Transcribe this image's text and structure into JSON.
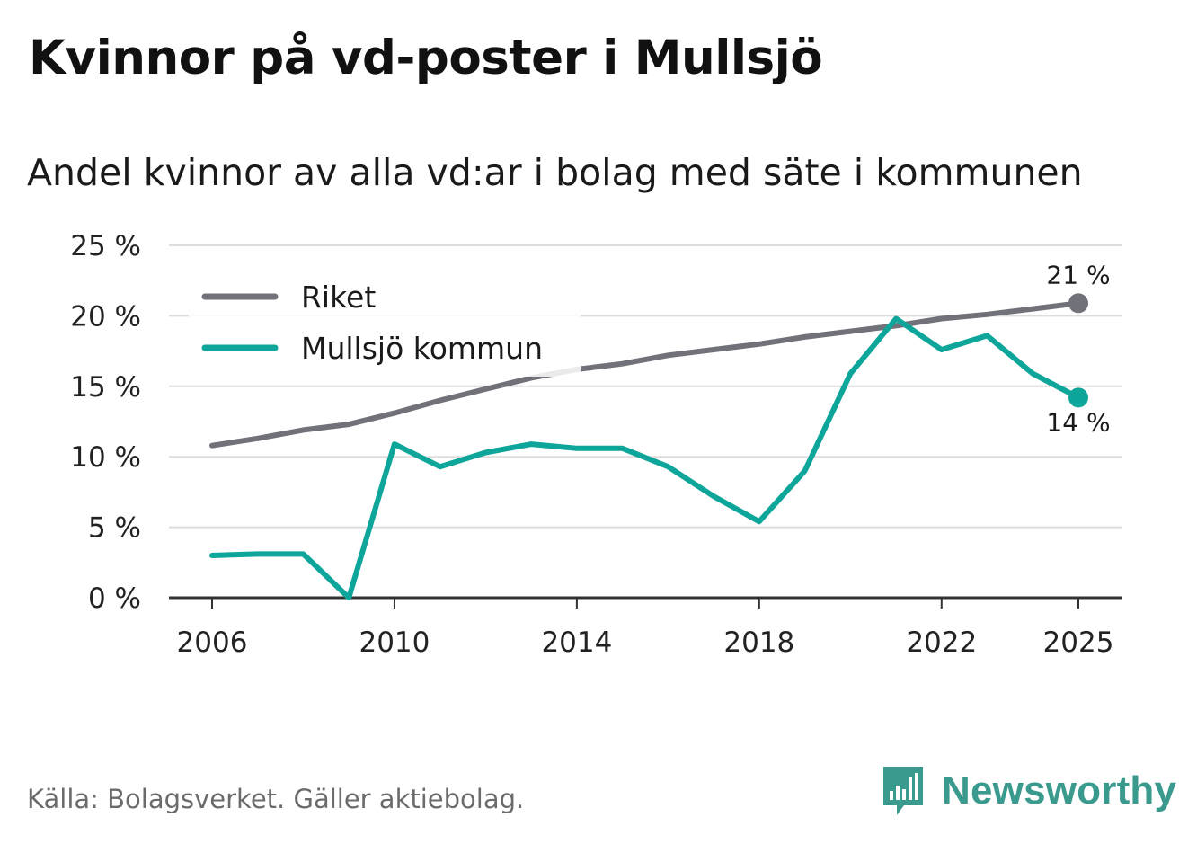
{
  "title": "Kvinnor på vd-poster i Mullsjö",
  "subtitle": "Andel kvinnor av alla vd:ar i bolag med säte i kommunen",
  "source": "Källa: Bolagsverket. Gäller aktiebolag.",
  "brand": "Newsworthy",
  "colors": {
    "riket": "#71717a",
    "mullsjo": "#0ea59a",
    "grid": "#dddddd",
    "axis": "#333333",
    "brand": "#3a9a8e"
  },
  "chart_data": {
    "type": "line",
    "title": "Kvinnor på vd-poster i Mullsjö",
    "xlabel": "",
    "ylabel": "",
    "ylim": [
      0,
      25
    ],
    "xlim": [
      2006,
      2025
    ],
    "x": [
      2006,
      2007,
      2008,
      2009,
      2010,
      2011,
      2012,
      2013,
      2014,
      2015,
      2016,
      2017,
      2018,
      2019,
      2020,
      2021,
      2022,
      2023,
      2024,
      2025
    ],
    "x_ticks": [
      2006,
      2010,
      2014,
      2018,
      2022,
      2025
    ],
    "y_ticks": [
      0,
      5,
      10,
      15,
      20,
      25
    ],
    "y_tick_labels": [
      "0 %",
      "5 %",
      "10 %",
      "15 %",
      "20 %",
      "25 %"
    ],
    "grid": true,
    "legend_position": "top-left",
    "series": [
      {
        "name": "Riket",
        "color": "#71717a",
        "values": [
          10.8,
          11.3,
          11.9,
          12.3,
          13.1,
          14.0,
          14.8,
          15.6,
          16.2,
          16.6,
          17.2,
          17.6,
          18.0,
          18.5,
          18.9,
          19.3,
          19.8,
          20.1,
          20.5,
          20.9
        ],
        "end_label": "21 %"
      },
      {
        "name": "Mullsjö kommun",
        "color": "#0ea59a",
        "values": [
          3.0,
          3.1,
          3.1,
          0.0,
          10.9,
          9.3,
          10.3,
          10.9,
          10.6,
          10.6,
          9.3,
          7.2,
          5.4,
          9.0,
          15.9,
          19.8,
          17.6,
          18.6,
          15.9,
          14.2
        ],
        "end_label": "14 %"
      }
    ]
  }
}
